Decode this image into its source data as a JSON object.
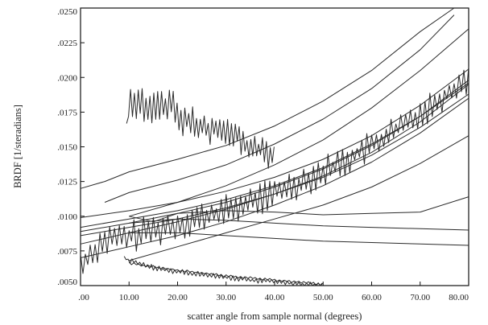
{
  "chart_data": {
    "type": "line",
    "title": "",
    "xlabel": "scatter angle from sample normal  (degrees)",
    "ylabel": "BRDF  [1/steradians]",
    "xlim": [
      0,
      80
    ],
    "ylim": [
      0.005,
      0.025
    ],
    "grid": false,
    "x_tick_labels": [
      ".00",
      "10.00",
      "20.00",
      "30.00",
      "40.00",
      "50.00",
      "60.00",
      "70.00",
      "80.00"
    ],
    "x_ticks": [
      0,
      10,
      20,
      30,
      40,
      50,
      60,
      70,
      80
    ],
    "y_tick_labels": [
      ".0050",
      ".0075",
      ".0100",
      ".0125",
      ".0150",
      ".0175",
      ".0200",
      ".0225",
      ".0250"
    ],
    "y_ticks": [
      0.005,
      0.0075,
      0.01,
      0.0125,
      0.015,
      0.0175,
      0.02,
      0.0225,
      0.025
    ],
    "series": [
      {
        "x": [
          0,
          10,
          20,
          30,
          40,
          50,
          60,
          70,
          80
        ],
        "y": [
          0.0092,
          0.0098,
          0.0104,
          0.0112,
          0.0122,
          0.0135,
          0.0152,
          0.0172,
          0.0196
        ]
      },
      {
        "x": [
          0,
          10,
          20,
          30,
          40,
          50,
          60,
          70,
          80
        ],
        "y": [
          0.0086,
          0.0092,
          0.0098,
          0.0106,
          0.0116,
          0.0128,
          0.0144,
          0.0164,
          0.0188
        ]
      },
      {
        "x": [
          0,
          10,
          20,
          30,
          40,
          50,
          60,
          70,
          80
        ],
        "y": [
          0.0099,
          0.0104,
          0.011,
          0.0118,
          0.0128,
          0.0141,
          0.0158,
          0.018,
          0.0206
        ]
      },
      {
        "x": [
          0,
          10,
          20,
          30,
          40,
          50,
          60,
          70,
          80
        ],
        "y": [
          0.0089,
          0.0095,
          0.0102,
          0.011,
          0.0121,
          0.0134,
          0.0151,
          0.0172,
          0.0198
        ]
      },
      {
        "x": [
          0,
          10,
          20,
          30,
          40,
          50,
          60,
          70,
          80
        ],
        "y": [
          0.007,
          0.0078,
          0.0086,
          0.0096,
          0.0108,
          0.0122,
          0.0139,
          0.016,
          0.0185
        ]
      },
      {
        "x": [
          0,
          10,
          20,
          30,
          40,
          50,
          60,
          70,
          80
        ],
        "y": [
          0.008,
          0.0088,
          0.0096,
          0.0105,
          0.0116,
          0.0129,
          0.0146,
          0.0168,
          0.0195
        ]
      },
      {
        "x": [
          0,
          5,
          10,
          20,
          30,
          40,
          50,
          60,
          70,
          77
        ],
        "y": [
          0.012,
          0.0125,
          0.0132,
          0.0141,
          0.0151,
          0.0165,
          0.0183,
          0.0205,
          0.0233,
          0.025
        ]
      },
      {
        "x": [
          5,
          10,
          20,
          30,
          40,
          50,
          60,
          70,
          77
        ],
        "y": [
          0.011,
          0.0117,
          0.0126,
          0.0137,
          0.0152,
          0.017,
          0.0192,
          0.022,
          0.0245
        ]
      },
      {
        "x": [
          10,
          20,
          30,
          40,
          50,
          60,
          70,
          80
        ],
        "y": [
          0.01,
          0.011,
          0.0122,
          0.0137,
          0.0155,
          0.0178,
          0.0205,
          0.0235
        ]
      },
      {
        "x": [
          10,
          15,
          20,
          30,
          40,
          50,
          60,
          70,
          80
        ],
        "y": [
          0.01,
          0.0096,
          0.0102,
          0.0104,
          0.0103,
          0.0101,
          0.0102,
          0.0103,
          0.0114
        ]
      },
      {
        "x": [
          10,
          20,
          30,
          40,
          50,
          60,
          70,
          80
        ],
        "y": [
          0.0095,
          0.0098,
          0.0097,
          0.0095,
          0.0093,
          0.0092,
          0.0091,
          0.009
        ]
      },
      {
        "x": [
          10,
          20,
          30,
          40,
          50,
          60,
          70,
          80
        ],
        "y": [
          0.0088,
          0.0088,
          0.0086,
          0.0084,
          0.0082,
          0.0081,
          0.008,
          0.0079
        ]
      },
      {
        "x": [
          10,
          20,
          30,
          40,
          50,
          60,
          70,
          80
        ],
        "y": [
          0.0068,
          0.0078,
          0.0088,
          0.0098,
          0.0108,
          0.0121,
          0.0138,
          0.0158
        ]
      },
      {
        "x": [
          0,
          5,
          10,
          15,
          20,
          25,
          30,
          35,
          40,
          45,
          50,
          55,
          60,
          65,
          70,
          75,
          80
        ],
        "y": [
          0.0065,
          0.0083,
          0.0085,
          0.009,
          0.0094,
          0.0099,
          0.0104,
          0.011,
          0.0117,
          0.0124,
          0.0132,
          0.0141,
          0.0151,
          0.0162,
          0.0174,
          0.0187,
          0.02
        ],
        "noise": 0.0012,
        "step": 0.5
      },
      {
        "x": [
          9.5,
          10,
          12,
          14,
          16,
          18,
          19,
          20,
          22,
          25,
          28,
          30,
          32,
          34,
          36,
          38,
          40
        ],
        "y": [
          0.016,
          0.018,
          0.0182,
          0.0177,
          0.0178,
          0.0182,
          0.0185,
          0.017,
          0.0168,
          0.0165,
          0.0162,
          0.0158,
          0.0162,
          0.015,
          0.015,
          0.0146,
          0.0145
        ],
        "noise": 0.0012,
        "step": 0.4
      },
      {
        "x": [
          9,
          10,
          15,
          20,
          25,
          30,
          35,
          40,
          45,
          50
        ],
        "y": [
          0.007,
          0.0068,
          0.0063,
          0.006,
          0.0058,
          0.0056,
          0.0054,
          0.0053,
          0.0051,
          0.005
        ],
        "noise": 0.0002,
        "step": 0.4
      },
      {
        "x": [
          10,
          20,
          30,
          40,
          50
        ],
        "y": [
          0.0066,
          0.0061,
          0.0057,
          0.0054,
          0.0051
        ],
        "noise": 0.0001,
        "step": 0.5
      }
    ]
  }
}
